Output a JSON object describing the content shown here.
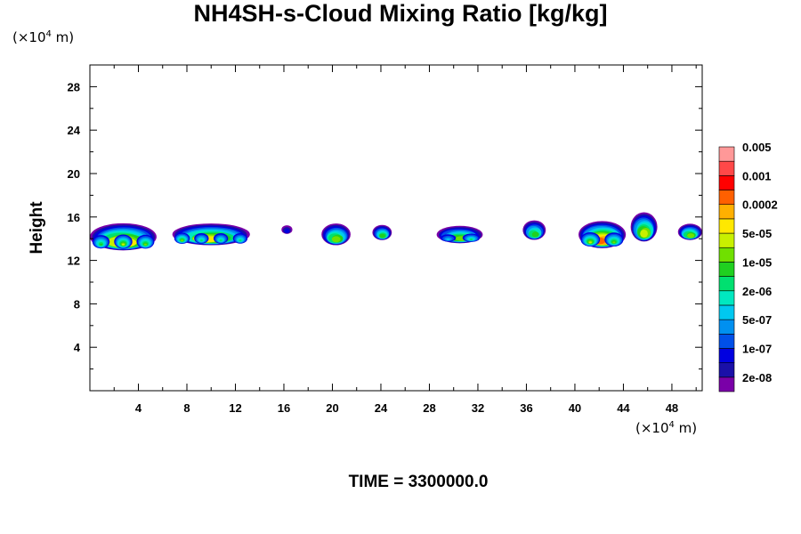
{
  "chart_data": {
    "type": "contour",
    "title": "NH4SH-s-Cloud Mixing Ratio [kg/kg]",
    "ylabel": "Height",
    "xlabel": "",
    "x_unit": {
      "prefix": "(×10",
      "exp": "4",
      "suffix": " m)"
    },
    "y_unit": {
      "prefix": "(×10",
      "exp": "4",
      "suffix": " m)"
    },
    "time_label": "TIME = 3300000.0",
    "xlim": [
      0,
      50.5
    ],
    "ylim": [
      0,
      30
    ],
    "x_ticks": [
      4,
      8,
      12,
      16,
      20,
      24,
      28,
      32,
      36,
      40,
      44,
      48
    ],
    "y_ticks": [
      4,
      8,
      12,
      16,
      20,
      24,
      28
    ],
    "colorbar": {
      "colors": [
        "#7a00a8",
        "#1a10a8",
        "#0000e0",
        "#0050e8",
        "#0090f0",
        "#00c8f0",
        "#00e8c0",
        "#00e070",
        "#20d020",
        "#70e000",
        "#c8f000",
        "#ffe800",
        "#ffb000",
        "#ff6000",
        "#ff0000",
        "#ff4848",
        "#ff9898"
      ],
      "labels": [
        "2e-08",
        "1e-07",
        "5e-07",
        "2e-06",
        "1e-05",
        "5e-05",
        "0.0002",
        "0.001",
        "0.005"
      ]
    },
    "cloud_clusters": [
      {
        "x_range": [
          0,
          5.5
        ],
        "z_range": [
          12.8,
          15.3
        ],
        "peak_level": 12
      },
      {
        "x_range": [
          6.8,
          13.2
        ],
        "z_range": [
          13.3,
          15.3
        ],
        "peak_level": 11
      },
      {
        "x_range": [
          15.8,
          16.7
        ],
        "z_range": [
          14.4,
          15.2
        ],
        "peak_level": 2
      },
      {
        "x_range": [
          19.1,
          21.5
        ],
        "z_range": [
          13.3,
          15.3
        ],
        "peak_level": 9
      },
      {
        "x_range": [
          23.3,
          24.9
        ],
        "z_range": [
          13.8,
          15.2
        ],
        "peak_level": 8
      },
      {
        "x_range": [
          28.6,
          32.4
        ],
        "z_range": [
          13.5,
          15.1
        ],
        "peak_level": 9
      },
      {
        "x_range": [
          35.7,
          37.6
        ],
        "z_range": [
          13.8,
          15.6
        ],
        "peak_level": 8
      },
      {
        "x_range": [
          40.3,
          44.2
        ],
        "z_range": [
          13.0,
          15.5
        ],
        "peak_level": 13
      },
      {
        "x_range": [
          44.6,
          46.8
        ],
        "z_range": [
          13.6,
          16.3
        ],
        "peak_level": 10
      },
      {
        "x_range": [
          48.5,
          50.5
        ],
        "z_range": [
          13.8,
          15.3
        ],
        "peak_level": 9
      }
    ]
  }
}
